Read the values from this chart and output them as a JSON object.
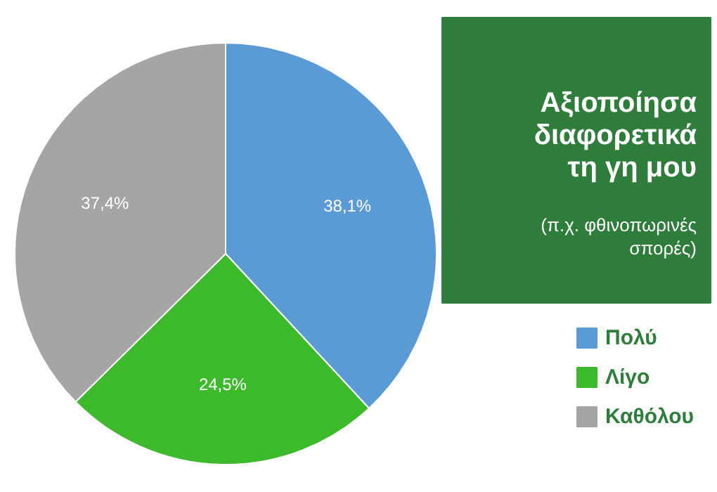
{
  "chart_data": {
    "type": "pie",
    "title": "Αξιοποίησα\nδιαφορετικά\nτη γη μου",
    "subtitle": "(π.χ. φθινοπωρινές\nσπορές)",
    "categories": [
      "Πολύ",
      "Λίγο",
      "Καθόλου"
    ],
    "values": [
      38.1,
      24.5,
      37.4
    ],
    "colors": [
      "#5b9bd5",
      "#3cba2c",
      "#a5a5a5"
    ],
    "value_labels": [
      "38,1%",
      "24,5%",
      "37,4%"
    ],
    "legend": "bottom right"
  }
}
